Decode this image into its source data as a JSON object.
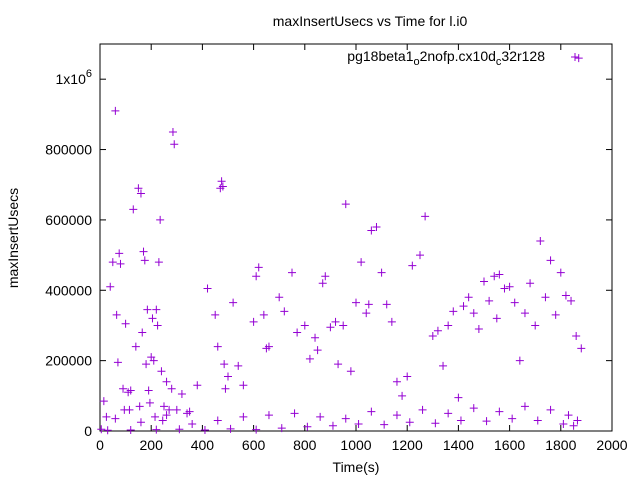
{
  "chart_data": {
    "type": "scatter",
    "title": "maxInsertUsecs vs Time for l.i0",
    "xlabel": "Time(s)",
    "ylabel": "maxInsertUsecs",
    "xlim": [
      0,
      2000
    ],
    "ylim": [
      0,
      1100000
    ],
    "xticks": [
      {
        "value": 0,
        "label": "0"
      },
      {
        "value": 200,
        "label": "200"
      },
      {
        "value": 400,
        "label": "400"
      },
      {
        "value": 600,
        "label": "600"
      },
      {
        "value": 800,
        "label": "800"
      },
      {
        "value": 1000,
        "label": "1000"
      },
      {
        "value": 1200,
        "label": "1200"
      },
      {
        "value": 1400,
        "label": "1400"
      },
      {
        "value": 1600,
        "label": "1600"
      },
      {
        "value": 1800,
        "label": "1800"
      },
      {
        "value": 2000,
        "label": "2000"
      }
    ],
    "yticks": [
      {
        "value": 0,
        "label": "0"
      },
      {
        "value": 200000,
        "label": "200000"
      },
      {
        "value": 400000,
        "label": "400000"
      },
      {
        "value": 600000,
        "label": "600000"
      },
      {
        "value": 800000,
        "label": "800000"
      },
      {
        "value": 1000000,
        "label_base": "1x10",
        "label_exp": "6"
      }
    ],
    "grid": false,
    "legend": {
      "placement": "top-right",
      "parts": [
        {
          "text": "pg18beta1",
          "sub": false
        },
        {
          "text": "o",
          "sub": true
        },
        {
          "text": "2nofp.cx10d",
          "sub": false
        },
        {
          "text": "c",
          "sub": true
        },
        {
          "text": "32r128",
          "sub": false
        }
      ]
    },
    "series": [
      {
        "color": "#9400d3",
        "marker": "plus",
        "x": [
          5,
          15,
          25,
          40,
          50,
          60,
          65,
          70,
          75,
          80,
          90,
          95,
          100,
          110,
          115,
          120,
          130,
          140,
          150,
          155,
          160,
          165,
          170,
          175,
          180,
          185,
          190,
          195,
          200,
          205,
          210,
          215,
          220,
          225,
          230,
          235,
          240,
          245,
          250,
          260,
          270,
          280,
          285,
          290,
          300,
          320,
          340,
          350,
          380,
          420,
          450,
          460,
          470,
          475,
          480,
          485,
          490,
          500,
          520,
          540,
          560,
          600,
          610,
          620,
          640,
          650,
          660,
          700,
          720,
          750,
          770,
          800,
          820,
          840,
          850,
          870,
          880,
          900,
          920,
          930,
          950,
          960,
          980,
          1000,
          1020,
          1040,
          1050,
          1060,
          1080,
          1100,
          1120,
          1140,
          1160,
          1180,
          1200,
          1220,
          1250,
          1270,
          1300,
          1320,
          1340,
          1360,
          1380,
          1400,
          1420,
          1440,
          1460,
          1480,
          1500,
          1520,
          1540,
          1550,
          1560,
          1580,
          1600,
          1620,
          1640,
          1660,
          1680,
          1700,
          1720,
          1740,
          1760,
          1780,
          1800,
          1820,
          1840,
          1860,
          1870,
          1880,
          30,
          120,
          220,
          310,
          410,
          510,
          610,
          710,
          810,
          910,
          1010,
          1110,
          1210,
          1310,
          1410,
          1510,
          1610,
          1710,
          1810,
          1850,
          60,
          160,
          260,
          360,
          460,
          560,
          660,
          760,
          860,
          960,
          1060,
          1160,
          1260,
          1360,
          1460,
          1560,
          1660,
          1760,
          1830,
          1865
        ],
        "y": [
          5000,
          85000,
          40000,
          410000,
          480000,
          910000,
          330000,
          195000,
          505000,
          475000,
          120000,
          60000,
          305000,
          110000,
          60000,
          115000,
          630000,
          240000,
          690000,
          70000,
          675000,
          280000,
          510000,
          485000,
          190000,
          345000,
          115000,
          80000,
          210000,
          320000,
          200000,
          40000,
          345000,
          300000,
          480000,
          600000,
          170000,
          30000,
          70000,
          140000,
          60000,
          120000,
          850000,
          815000,
          60000,
          105000,
          50000,
          55000,
          130000,
          405000,
          330000,
          240000,
          690000,
          710000,
          695000,
          190000,
          120000,
          155000,
          365000,
          185000,
          130000,
          310000,
          440000,
          465000,
          330000,
          235000,
          240000,
          380000,
          340000,
          450000,
          280000,
          300000,
          205000,
          265000,
          230000,
          420000,
          440000,
          295000,
          310000,
          190000,
          300000,
          645000,
          170000,
          365000,
          480000,
          335000,
          360000,
          570000,
          580000,
          450000,
          360000,
          310000,
          140000,
          100000,
          155000,
          470000,
          500000,
          610000,
          270000,
          285000,
          185000,
          300000,
          340000,
          95000,
          355000,
          380000,
          335000,
          290000,
          425000,
          370000,
          440000,
          320000,
          445000,
          405000,
          410000,
          365000,
          200000,
          335000,
          420000,
          300000,
          540000,
          380000,
          485000,
          330000,
          450000,
          385000,
          370000,
          270000,
          1060000,
          235000,
          2000,
          3000,
          4000,
          5000,
          3000,
          6000,
          4000,
          8000,
          12000,
          15000,
          20000,
          18000,
          25000,
          22000,
          30000,
          28000,
          35000,
          30000,
          20000,
          15000,
          35000,
          25000,
          45000,
          20000,
          30000,
          40000,
          45000,
          50000,
          40000,
          35000,
          55000,
          45000,
          60000,
          50000,
          65000,
          55000,
          70000,
          60000,
          45000,
          30000
        ]
      }
    ]
  }
}
